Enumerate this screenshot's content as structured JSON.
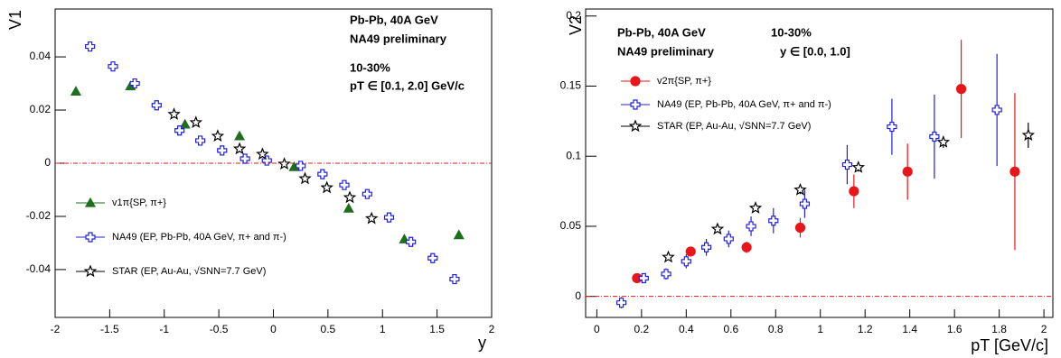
{
  "chart_data": [
    {
      "type": "scatter",
      "y_label": "V1",
      "x_label": "y",
      "xlim": [
        -2,
        2
      ],
      "ylim": [
        -0.058,
        0.058
      ],
      "xticks": [
        -2,
        -1.5,
        -1,
        -0.5,
        0,
        0.5,
        1,
        1.5,
        2
      ],
      "yticks": [
        -0.04,
        -0.02,
        0,
        0.02,
        0.04
      ],
      "reference_line": 0,
      "annotations": [
        "Pb-Pb, 40A GeV",
        "NA49 preliminary",
        "10-30%",
        "pT ∈ [0.1, 2.0] GeV/c"
      ],
      "series": [
        {
          "name": "v1π{SP, π+}",
          "color": "#1e6e1e",
          "marker": "triangle",
          "x": [
            -1.81,
            -1.31,
            -0.81,
            -0.31,
            0.19,
            0.69,
            1.2,
            1.7
          ],
          "values": [
            0.027,
            0.029,
            0.0146,
            0.0102,
            -0.0014,
            -0.017,
            -0.0286,
            -0.027
          ]
        },
        {
          "name": "NA49 (EP, Pb-Pb, 40A GeV, π+ and π-)",
          "color": "#1f1fe0",
          "marker": "cross",
          "x": [
            -1.68,
            -1.47,
            -1.27,
            -1.07,
            -0.86,
            -0.67,
            -0.47,
            -0.26,
            -0.06,
            0.25,
            0.45,
            0.65,
            0.86,
            1.06,
            1.26,
            1.46,
            1.66
          ],
          "values": [
            0.0439,
            0.0364,
            0.03,
            0.0218,
            0.0123,
            0.0085,
            0.0048,
            0.0017,
            0.001,
            -0.001,
            -0.0041,
            -0.0082,
            -0.0116,
            -0.0204,
            -0.0296,
            -0.0357,
            -0.0436
          ]
        },
        {
          "name": "STAR (EP, Au-Au, √SNN=7.7 GeV)",
          "color": "#000000",
          "marker": "star",
          "x": [
            -0.91,
            -0.71,
            -0.51,
            -0.31,
            -0.1,
            0.1,
            0.29,
            0.49,
            0.7,
            0.9
          ],
          "values": [
            0.0184,
            0.0153,
            0.0102,
            0.0054,
            0.0034,
            -0.0003,
            -0.0058,
            -0.0092,
            -0.0129,
            -0.0208
          ]
        }
      ]
    },
    {
      "type": "scatter",
      "y_label": "V2",
      "x_label": "pT [GeV/c]",
      "xlim": [
        -0.05,
        2.04
      ],
      "ylim": [
        -0.015,
        0.205
      ],
      "xticks": [
        0,
        0.2,
        0.4,
        0.6,
        0.8,
        1,
        1.2,
        1.4,
        1.6,
        1.8,
        2
      ],
      "yticks": [
        0,
        0.05,
        0.1,
        0.15,
        0.2
      ],
      "reference_line": 0,
      "annotations": [
        "Pb-Pb, 40A GeV",
        "10-30%",
        "NA49 preliminary",
        "y ∈ [0.0, 1.0]"
      ],
      "series": [
        {
          "name": "v2π{SP, π+}",
          "color": "#e8161b",
          "marker": "circle",
          "x": [
            0.18,
            0.42,
            0.67,
            0.91,
            1.15,
            1.39,
            1.63,
            1.87
          ],
          "values": [
            0.013,
            0.032,
            0.035,
            0.049,
            0.075,
            0.089,
            0.148,
            0.089
          ],
          "errors": [
            0.002,
            0.002,
            0.004,
            0.007,
            0.012,
            0.02,
            0.035,
            0.056
          ]
        },
        {
          "name": "NA49 (EP, Pb-Pb, 40A GeV, π+ and π-)",
          "color": "#1f1fe0",
          "marker": "cross",
          "x": [
            0.11,
            0.21,
            0.31,
            0.4,
            0.49,
            0.59,
            0.69,
            0.79,
            0.93,
            1.12,
            1.32,
            1.51,
            1.79
          ],
          "values": [
            -0.0045,
            0.013,
            0.016,
            0.025,
            0.035,
            0.041,
            0.05,
            0.054,
            0.066,
            0.094,
            0.121,
            0.114,
            0.133
          ],
          "errors": [
            0.004,
            0.003,
            0.004,
            0.005,
            0.006,
            0.006,
            0.007,
            0.009,
            0.01,
            0.014,
            0.02,
            0.03,
            0.04
          ]
        },
        {
          "name": "STAR (EP, Au-Au, √SNN=7.7 GeV)",
          "color": "#000000",
          "marker": "star",
          "x": [
            0.32,
            0.54,
            0.71,
            0.91,
            1.17,
            1.55,
            1.93
          ],
          "values": [
            0.028,
            0.048,
            0.063,
            0.076,
            0.092,
            0.11,
            0.115
          ],
          "errors": [
            0.002,
            0.002,
            0.002,
            0.003,
            0.003,
            0.004,
            0.009
          ]
        }
      ]
    }
  ]
}
